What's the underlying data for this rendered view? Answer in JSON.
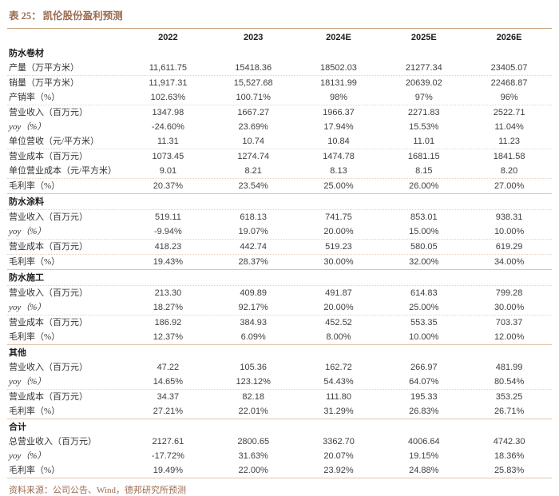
{
  "title_label": "表 25：",
  "title_text": "凯伦股份盈利预测",
  "columns": [
    "2022",
    "2023",
    "2024E",
    "2025E",
    "2026E"
  ],
  "sections": [
    {
      "name": "防水卷材",
      "header_dotted": false,
      "rows": [
        {
          "label": "产量（万平方米）",
          "values": [
            "11,611.75",
            "15418.36",
            "18502.03",
            "21277.34",
            "23405.07"
          ],
          "dotted": true,
          "italic": false
        },
        {
          "label": "销量（万平方米）",
          "values": [
            "11,917.31",
            "15,527.68",
            "18131.99",
            "20639.02",
            "22468.87"
          ],
          "dotted": false,
          "italic": false
        },
        {
          "label": "产销率（%）",
          "values": [
            "102.63%",
            "100.71%",
            "98%",
            "97%",
            "96%"
          ],
          "dotted": true,
          "italic": false
        },
        {
          "label": "营业收入（百万元）",
          "values": [
            "1347.98",
            "1667.27",
            "1966.37",
            "2271.83",
            "2522.71"
          ],
          "dotted": false,
          "italic": false
        },
        {
          "label": "yoy（%）",
          "values": [
            "-24.60%",
            "23.69%",
            "17.94%",
            "15.53%",
            "11.04%"
          ],
          "dotted": false,
          "italic": true
        },
        {
          "label": "单位营收（元/平方米）",
          "values": [
            "11.31",
            "10.74",
            "10.84",
            "11.01",
            "11.23"
          ],
          "dotted": true,
          "italic": false
        },
        {
          "label": "营业成本（百万元）",
          "values": [
            "1073.45",
            "1274.74",
            "1474.78",
            "1681.15",
            "1841.58"
          ],
          "dotted": false,
          "italic": false
        },
        {
          "label": "单位营业成本（元/平方米）",
          "values": [
            "9.01",
            "8.21",
            "8.13",
            "8.15",
            "8.20"
          ],
          "dotted": true,
          "italic": false
        },
        {
          "label": "毛利率（%）",
          "values": [
            "20.37%",
            "23.54%",
            "25.00%",
            "26.00%",
            "27.00%"
          ],
          "dotted": false,
          "italic": false
        }
      ]
    },
    {
      "name": "防水涂料",
      "header_dotted": true,
      "rows": [
        {
          "label": "营业收入（百万元）",
          "values": [
            "519.11",
            "618.13",
            "741.75",
            "853.01",
            "938.31"
          ],
          "dotted": false,
          "italic": false
        },
        {
          "label": "yoy（%）",
          "values": [
            "-9.94%",
            "19.07%",
            "20.00%",
            "15.00%",
            "10.00%"
          ],
          "dotted": true,
          "italic": true
        },
        {
          "label": "营业成本（百万元）",
          "values": [
            "418.23",
            "442.74",
            "519.23",
            "580.05",
            "619.29"
          ],
          "dotted": true,
          "italic": false
        },
        {
          "label": "毛利率（%）",
          "values": [
            "19.43%",
            "28.37%",
            "30.00%",
            "32.00%",
            "34.00%"
          ],
          "dotted": false,
          "italic": false
        }
      ]
    },
    {
      "name": "防水施工",
      "header_dotted": true,
      "rows": [
        {
          "label": "营业收入（百万元）",
          "values": [
            "213.30",
            "409.89",
            "491.87",
            "614.83",
            "799.28"
          ],
          "dotted": false,
          "italic": false
        },
        {
          "label": "yoy（%）",
          "values": [
            "18.27%",
            "92.17%",
            "20.00%",
            "25.00%",
            "30.00%"
          ],
          "dotted": true,
          "italic": true
        },
        {
          "label": "营业成本（百万元）",
          "values": [
            "186.92",
            "384.93",
            "452.52",
            "553.35",
            "703.37"
          ],
          "dotted": false,
          "italic": false
        },
        {
          "label": "毛利率（%）",
          "values": [
            "12.37%",
            "6.09%",
            "8.00%",
            "10.00%",
            "12.00%"
          ],
          "dotted": false,
          "italic": false
        }
      ]
    },
    {
      "name": "其他",
      "header_dotted": false,
      "rows": [
        {
          "label": "营业收入（百万元）",
          "values": [
            "47.22",
            "105.36",
            "162.72",
            "266.97",
            "481.99"
          ],
          "dotted": false,
          "italic": false
        },
        {
          "label": "yoy（%）",
          "values": [
            "14.65%",
            "123.12%",
            "54.43%",
            "64.07%",
            "80.54%"
          ],
          "dotted": true,
          "italic": true
        },
        {
          "label": "营业成本（百万元）",
          "values": [
            "34.37",
            "82.18",
            "111.80",
            "195.33",
            "353.25"
          ],
          "dotted": false,
          "italic": false
        },
        {
          "label": "毛利率（%）",
          "values": [
            "27.21%",
            "22.01%",
            "31.29%",
            "26.83%",
            "26.71%"
          ],
          "dotted": false,
          "italic": false
        }
      ]
    },
    {
      "name": "合计",
      "header_dotted": false,
      "rows": [
        {
          "label": "总营业收入（百万元）",
          "values": [
            "2127.61",
            "2800.65",
            "3362.70",
            "4006.64",
            "4742.30"
          ],
          "dotted": false,
          "italic": false
        },
        {
          "label": "yoy（%）",
          "values": [
            "-17.72%",
            "31.63%",
            "20.07%",
            "19.15%",
            "18.36%"
          ],
          "dotted": false,
          "italic": true
        },
        {
          "label": "毛利率（%）",
          "values": [
            "19.49%",
            "22.00%",
            "23.92%",
            "24.88%",
            "25.83%"
          ],
          "dotted": false,
          "italic": false
        }
      ]
    }
  ],
  "footer": "资料来源：公司公告、Wind，德邦研究所预测",
  "colors": {
    "accent_brown": "#9b6b4f",
    "title_rule": "#c9a27e",
    "section_rule": "#e0c5ad",
    "dotted_rule": "#e6d2bf",
    "body_text": "#3f3f3f"
  }
}
